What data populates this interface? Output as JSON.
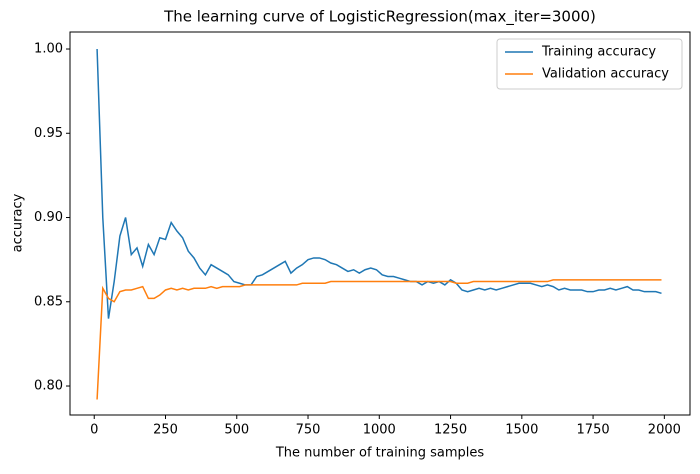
{
  "chart_data": {
    "type": "line",
    "title": "The learning curve of LogisticRegression(max_iter=3000)",
    "x_label": "The number of training samples",
    "y_label": "accuracy",
    "x": [
      10,
      30,
      50,
      70,
      90,
      110,
      130,
      150,
      170,
      190,
      210,
      230,
      250,
      270,
      290,
      310,
      330,
      350,
      370,
      390,
      410,
      430,
      450,
      470,
      490,
      510,
      530,
      550,
      570,
      590,
      610,
      630,
      650,
      670,
      690,
      710,
      730,
      750,
      770,
      790,
      810,
      830,
      850,
      870,
      890,
      910,
      930,
      950,
      970,
      990,
      1010,
      1030,
      1050,
      1070,
      1090,
      1110,
      1130,
      1150,
      1170,
      1190,
      1210,
      1230,
      1250,
      1270,
      1290,
      1310,
      1330,
      1350,
      1370,
      1390,
      1410,
      1430,
      1450,
      1470,
      1490,
      1510,
      1530,
      1550,
      1570,
      1590,
      1610,
      1630,
      1650,
      1670,
      1690,
      1710,
      1730,
      1750,
      1770,
      1790,
      1810,
      1830,
      1850,
      1870,
      1890,
      1910,
      1930,
      1950,
      1970,
      1990
    ],
    "series": [
      {
        "name": "Training accuracy",
        "color": "#1f77b4",
        "values": [
          1.0,
          0.9,
          0.84,
          0.862,
          0.889,
          0.9,
          0.878,
          0.882,
          0.871,
          0.884,
          0.878,
          0.888,
          0.887,
          0.897,
          0.892,
          0.888,
          0.88,
          0.876,
          0.87,
          0.866,
          0.872,
          0.87,
          0.868,
          0.866,
          0.862,
          0.861,
          0.86,
          0.86,
          0.865,
          0.866,
          0.868,
          0.87,
          0.872,
          0.874,
          0.867,
          0.87,
          0.872,
          0.875,
          0.876,
          0.876,
          0.875,
          0.873,
          0.872,
          0.87,
          0.868,
          0.869,
          0.867,
          0.869,
          0.87,
          0.869,
          0.866,
          0.865,
          0.865,
          0.864,
          0.863,
          0.862,
          0.862,
          0.86,
          0.862,
          0.861,
          0.862,
          0.86,
          0.863,
          0.861,
          0.857,
          0.856,
          0.857,
          0.858,
          0.857,
          0.858,
          0.857,
          0.858,
          0.859,
          0.86,
          0.861,
          0.861,
          0.861,
          0.86,
          0.859,
          0.86,
          0.859,
          0.857,
          0.858,
          0.857,
          0.857,
          0.857,
          0.856,
          0.856,
          0.857,
          0.857,
          0.858,
          0.857,
          0.858,
          0.859,
          0.857,
          0.857,
          0.856,
          0.856,
          0.856,
          0.855
        ]
      },
      {
        "name": "Validation accuracy",
        "color": "#ff7f0e",
        "values": [
          0.792,
          0.858,
          0.852,
          0.85,
          0.856,
          0.857,
          0.857,
          0.858,
          0.859,
          0.852,
          0.852,
          0.854,
          0.857,
          0.858,
          0.857,
          0.858,
          0.857,
          0.858,
          0.858,
          0.858,
          0.859,
          0.858,
          0.859,
          0.859,
          0.859,
          0.859,
          0.86,
          0.86,
          0.86,
          0.86,
          0.86,
          0.86,
          0.86,
          0.86,
          0.86,
          0.86,
          0.861,
          0.861,
          0.861,
          0.861,
          0.861,
          0.862,
          0.862,
          0.862,
          0.862,
          0.862,
          0.862,
          0.862,
          0.862,
          0.862,
          0.862,
          0.862,
          0.862,
          0.862,
          0.862,
          0.862,
          0.862,
          0.862,
          0.862,
          0.862,
          0.862,
          0.862,
          0.862,
          0.861,
          0.861,
          0.861,
          0.862,
          0.862,
          0.862,
          0.862,
          0.862,
          0.862,
          0.862,
          0.862,
          0.862,
          0.862,
          0.862,
          0.862,
          0.862,
          0.862,
          0.863,
          0.863,
          0.863,
          0.863,
          0.863,
          0.863,
          0.863,
          0.863,
          0.863,
          0.863,
          0.863,
          0.863,
          0.863,
          0.863,
          0.863,
          0.863,
          0.863,
          0.863,
          0.863,
          0.863
        ]
      }
    ],
    "xlim": [
      -85,
      2090
    ],
    "ylim": [
      0.7828,
      1.0101
    ],
    "xticks": [
      0,
      250,
      500,
      750,
      1000,
      1250,
      1500,
      1750,
      2000
    ],
    "yticks": [
      {
        "value": 0.8,
        "label": "0.80"
      },
      0.85,
      {
        "value": 0.9,
        "label": "0.90"
      },
      0.95,
      {
        "value": 1.0,
        "label": "1.00"
      }
    ],
    "legend": "upper right"
  }
}
